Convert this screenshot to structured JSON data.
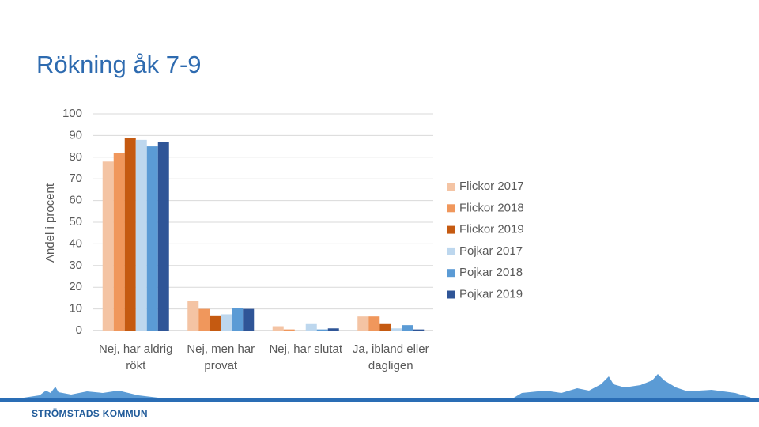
{
  "title": "Rökning åk 7-9",
  "footer": "STRÖMSTADS KOMMUN",
  "chart_data": {
    "type": "bar",
    "y_label": "Andel i procent",
    "categories": [
      "Nej, har aldrig rökt",
      "Nej, men har provat",
      "Nej, har slutat",
      "Ja, ibland eller dagligen"
    ],
    "series": [
      {
        "name": "Flickor 2017",
        "color": "#f4c4a4",
        "values": [
          78,
          13.5,
          2,
          6.5
        ]
      },
      {
        "name": "Flickor 2018",
        "color": "#f0975c",
        "values": [
          82,
          10,
          0.5,
          6.5
        ]
      },
      {
        "name": "Flickor 2019",
        "color": "#c55a11",
        "values": [
          89,
          7,
          0,
          3
        ]
      },
      {
        "name": "Pojkar 2017",
        "color": "#bdd7ee",
        "values": [
          88,
          7.5,
          3,
          1
        ]
      },
      {
        "name": "Pojkar 2018",
        "color": "#5b9bd5",
        "values": [
          85,
          10.5,
          0.5,
          2.5
        ]
      },
      {
        "name": "Pojkar 2019",
        "color": "#2f5597",
        "values": [
          87,
          10,
          1,
          0.5
        ]
      }
    ],
    "ylim": [
      0,
      100
    ],
    "yticks": [
      0,
      10,
      20,
      30,
      40,
      50,
      60,
      70,
      80,
      90,
      100
    ],
    "grid": true,
    "legend": "right"
  }
}
